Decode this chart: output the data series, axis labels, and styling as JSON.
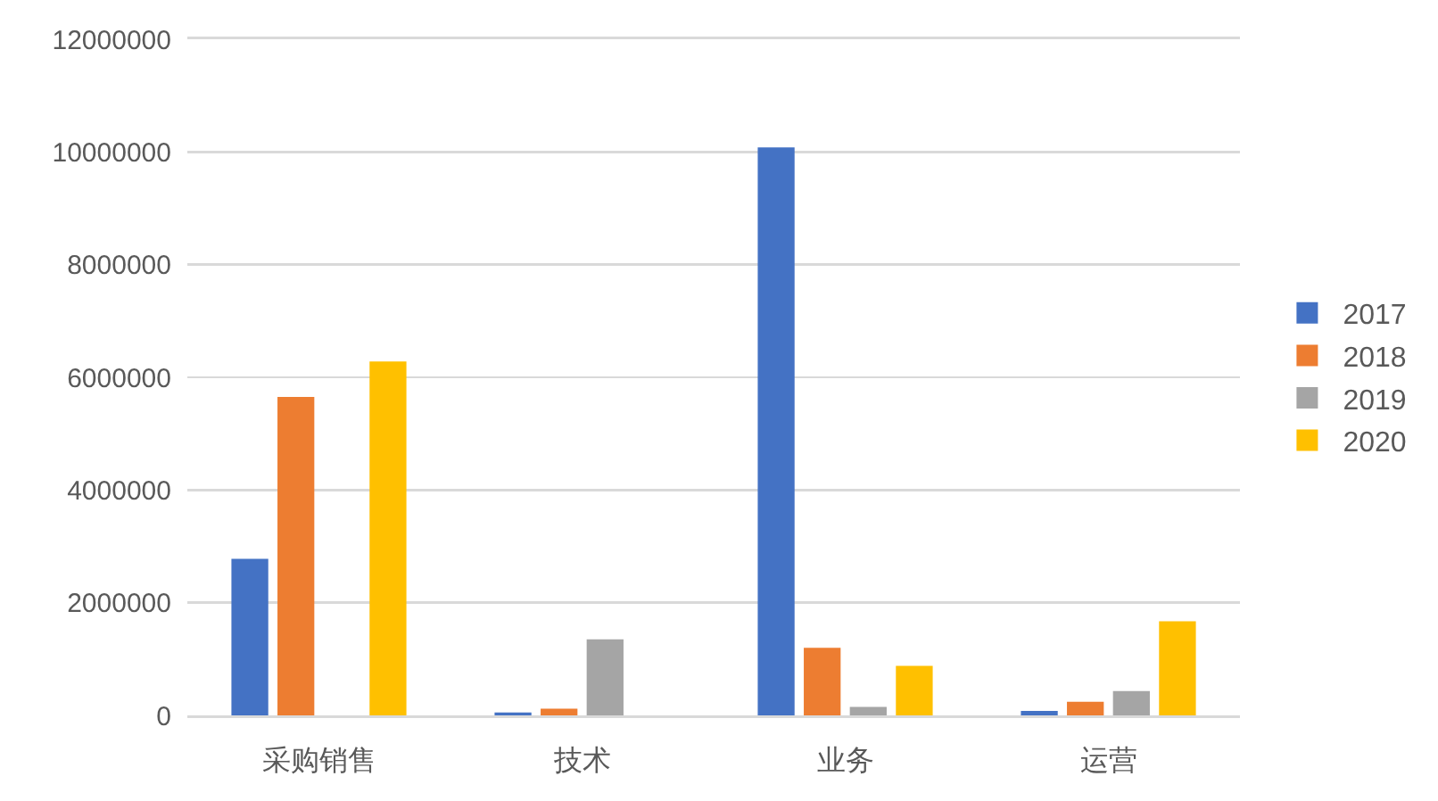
{
  "chart_data": {
    "type": "bar",
    "categories": [
      "采购销售",
      "技术",
      "业务",
      "运营"
    ],
    "series": [
      {
        "name": "2017",
        "color": "#4472c4",
        "values": [
          2780000,
          50000,
          10080000,
          80000
        ]
      },
      {
        "name": "2018",
        "color": "#ed7d31",
        "values": [
          5650000,
          120000,
          1200000,
          240000
        ]
      },
      {
        "name": "2019",
        "color": "#a5a5a5",
        "values": [
          null,
          1350000,
          150000,
          430000
        ]
      },
      {
        "name": "2020",
        "color": "#ffc000",
        "values": [
          6280000,
          null,
          880000,
          1670000
        ]
      }
    ],
    "ylim": [
      0,
      12000000
    ],
    "yticks": [
      0,
      2000000,
      4000000,
      6000000,
      8000000,
      10000000,
      12000000
    ],
    "grid": "y",
    "legend": "right"
  }
}
